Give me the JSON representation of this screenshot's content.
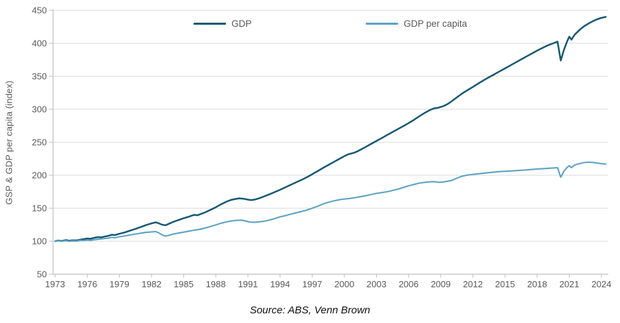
{
  "chart_data": {
    "type": "line",
    "title": "",
    "xlabel": "",
    "ylabel": "GSP & GDP per capita (index)",
    "source_note": "Source: ABS, Venn Brown",
    "x_range": [
      1973,
      2024.5
    ],
    "ylim": [
      50,
      450
    ],
    "x_ticks": [
      1973,
      1976,
      1979,
      1982,
      1985,
      1988,
      1991,
      1994,
      1997,
      2000,
      2003,
      2006,
      2009,
      2012,
      2015,
      2018,
      2021,
      2024
    ],
    "y_ticks": [
      50,
      100,
      150,
      200,
      250,
      300,
      350,
      400,
      450
    ],
    "grid": "horizontal",
    "legend_position": "top-center",
    "colors": {
      "gridline": "#d9d9d9",
      "axis": "#bfbfbf",
      "tick_text": "#595959",
      "gdp": "#175873",
      "gdp_per_capita": "#5da3c4"
    },
    "series": [
      {
        "name": "GDP",
        "color": "#175873",
        "points": [
          [
            1973,
            100
          ],
          [
            1973.3,
            101
          ],
          [
            1973.6,
            100.3
          ],
          [
            1974,
            101.8
          ],
          [
            1974.3,
            100.8
          ],
          [
            1974.6,
            101.4
          ],
          [
            1975,
            101.2
          ],
          [
            1975.4,
            102.5
          ],
          [
            1975.7,
            103.2
          ],
          [
            1976,
            104.2
          ],
          [
            1976.3,
            103.6
          ],
          [
            1976.6,
            105
          ],
          [
            1977,
            106.2
          ],
          [
            1977.3,
            105.8
          ],
          [
            1977.6,
            107
          ],
          [
            1978,
            108.3
          ],
          [
            1978.3,
            109.8
          ],
          [
            1978.6,
            109.4
          ],
          [
            1979,
            111.3
          ],
          [
            1979.5,
            113.3
          ],
          [
            1980,
            116
          ],
          [
            1980.5,
            118.6
          ],
          [
            1981,
            121.6
          ],
          [
            1981.5,
            124.6
          ],
          [
            1982,
            127
          ],
          [
            1982.4,
            128.6
          ],
          [
            1982.7,
            127
          ],
          [
            1983,
            125
          ],
          [
            1983.3,
            124.2
          ],
          [
            1983.6,
            126.2
          ],
          [
            1984,
            129.2
          ],
          [
            1984.5,
            132
          ],
          [
            1985,
            134.8
          ],
          [
            1985.5,
            137.3
          ],
          [
            1986,
            140
          ],
          [
            1986.3,
            139.4
          ],
          [
            1986.6,
            141.3
          ],
          [
            1987,
            143.8
          ],
          [
            1987.5,
            147.5
          ],
          [
            1988,
            151.5
          ],
          [
            1988.5,
            156
          ],
          [
            1989,
            160
          ],
          [
            1989.4,
            162.5
          ],
          [
            1989.8,
            164
          ],
          [
            1990.2,
            165
          ],
          [
            1990.6,
            164.4
          ],
          [
            1991,
            163
          ],
          [
            1991.3,
            162.4
          ],
          [
            1991.6,
            163
          ],
          [
            1992,
            164.8
          ],
          [
            1992.5,
            167.8
          ],
          [
            1993,
            171
          ],
          [
            1993.5,
            174.5
          ],
          [
            1994,
            178
          ],
          [
            1994.5,
            181.8
          ],
          [
            1995,
            185.5
          ],
          [
            1995.5,
            189.3
          ],
          [
            1996,
            193
          ],
          [
            1996.5,
            197
          ],
          [
            1997,
            201.5
          ],
          [
            1997.5,
            206.3
          ],
          [
            1998,
            211
          ],
          [
            1998.5,
            215.5
          ],
          [
            1999,
            220
          ],
          [
            1999.5,
            224.5
          ],
          [
            2000,
            229
          ],
          [
            2000.4,
            232
          ],
          [
            2000.8,
            233.5
          ],
          [
            2001.2,
            236
          ],
          [
            2001.6,
            239.5
          ],
          [
            2002,
            243
          ],
          [
            2002.5,
            247.5
          ],
          [
            2003,
            252
          ],
          [
            2003.5,
            256.5
          ],
          [
            2004,
            261
          ],
          [
            2004.5,
            265.5
          ],
          [
            2005,
            270
          ],
          [
            2005.5,
            274.5
          ],
          [
            2006,
            279
          ],
          [
            2006.5,
            284
          ],
          [
            2007,
            289.5
          ],
          [
            2007.5,
            294.5
          ],
          [
            2008,
            299
          ],
          [
            2008.4,
            301.5
          ],
          [
            2008.8,
            302.5
          ],
          [
            2009.2,
            304.5
          ],
          [
            2009.6,
            307.5
          ],
          [
            2010,
            312
          ],
          [
            2010.5,
            318
          ],
          [
            2011,
            324
          ],
          [
            2011.5,
            329
          ],
          [
            2012,
            334
          ],
          [
            2012.5,
            339
          ],
          [
            2013,
            344
          ],
          [
            2013.5,
            348.5
          ],
          [
            2014,
            353
          ],
          [
            2014.5,
            357.5
          ],
          [
            2015,
            362
          ],
          [
            2015.5,
            366.5
          ],
          [
            2016,
            371
          ],
          [
            2016.5,
            375.5
          ],
          [
            2017,
            380
          ],
          [
            2017.5,
            384.5
          ],
          [
            2018,
            389
          ],
          [
            2018.5,
            393
          ],
          [
            2019,
            397
          ],
          [
            2019.5,
            400
          ],
          [
            2019.9,
            402.5
          ],
          [
            2020.2,
            374
          ],
          [
            2020.5,
            390
          ],
          [
            2020.8,
            403
          ],
          [
            2021,
            410
          ],
          [
            2021.2,
            405.5
          ],
          [
            2021.5,
            413
          ],
          [
            2022,
            421
          ],
          [
            2022.4,
            426
          ],
          [
            2022.8,
            430
          ],
          [
            2023.2,
            433.5
          ],
          [
            2023.6,
            436.5
          ],
          [
            2024,
            438.5
          ],
          [
            2024.4,
            440
          ]
        ]
      },
      {
        "name": "GDP per capita",
        "color": "#5da3c4",
        "points": [
          [
            1973,
            100
          ],
          [
            1973.3,
            100.6
          ],
          [
            1973.6,
            99.8
          ],
          [
            1974,
            100.8
          ],
          [
            1974.3,
            99.9
          ],
          [
            1974.6,
            100.4
          ],
          [
            1975,
            100.2
          ],
          [
            1975.4,
            101.2
          ],
          [
            1975.7,
            101
          ],
          [
            1976,
            101.8
          ],
          [
            1976.3,
            101.2
          ],
          [
            1976.6,
            102.2
          ],
          [
            1977,
            103
          ],
          [
            1977.4,
            103.6
          ],
          [
            1978,
            104.8
          ],
          [
            1978.3,
            105.8
          ],
          [
            1978.6,
            105.3
          ],
          [
            1979,
            106.8
          ],
          [
            1979.5,
            108
          ],
          [
            1980,
            109.5
          ],
          [
            1980.5,
            110.8
          ],
          [
            1981,
            112.2
          ],
          [
            1981.5,
            113.4
          ],
          [
            1982,
            114.2
          ],
          [
            1982.4,
            114.6
          ],
          [
            1982.7,
            112.5
          ],
          [
            1983,
            109.5
          ],
          [
            1983.3,
            107.8
          ],
          [
            1983.6,
            108.8
          ],
          [
            1984,
            110.8
          ],
          [
            1984.5,
            112.3
          ],
          [
            1985,
            113.8
          ],
          [
            1985.5,
            115.3
          ],
          [
            1986,
            116.8
          ],
          [
            1986.5,
            118
          ],
          [
            1987,
            120
          ],
          [
            1987.5,
            122.3
          ],
          [
            1988,
            124.8
          ],
          [
            1988.5,
            127.3
          ],
          [
            1989,
            129.3
          ],
          [
            1989.4,
            130.5
          ],
          [
            1990,
            131.8
          ],
          [
            1990.4,
            132
          ],
          [
            1990.8,
            130.5
          ],
          [
            1991.2,
            129
          ],
          [
            1991.6,
            128.8
          ],
          [
            1992,
            129.3
          ],
          [
            1992.5,
            130.3
          ],
          [
            1993,
            132
          ],
          [
            1993.5,
            134.3
          ],
          [
            1994,
            137
          ],
          [
            1994.5,
            138.8
          ],
          [
            1995,
            141
          ],
          [
            1995.5,
            143
          ],
          [
            1996,
            145
          ],
          [
            1996.5,
            147.3
          ],
          [
            1997,
            150
          ],
          [
            1997.5,
            153
          ],
          [
            1998,
            156.5
          ],
          [
            1998.5,
            159
          ],
          [
            1999,
            161
          ],
          [
            1999.5,
            162.8
          ],
          [
            2000,
            164
          ],
          [
            2000.5,
            164.8
          ],
          [
            2001,
            166
          ],
          [
            2001.5,
            167.5
          ],
          [
            2002,
            169
          ],
          [
            2002.5,
            170.8
          ],
          [
            2003,
            172.5
          ],
          [
            2003.5,
            173.8
          ],
          [
            2004,
            175
          ],
          [
            2004.5,
            177
          ],
          [
            2005,
            179
          ],
          [
            2005.5,
            181.5
          ],
          [
            2006,
            184
          ],
          [
            2006.5,
            186
          ],
          [
            2007,
            188
          ],
          [
            2007.5,
            189.3
          ],
          [
            2008,
            190
          ],
          [
            2008.4,
            190.3
          ],
          [
            2008.8,
            189.3
          ],
          [
            2009.2,
            189.8
          ],
          [
            2009.6,
            190.8
          ],
          [
            2010,
            192
          ],
          [
            2010.5,
            195.5
          ],
          [
            2011,
            198.5
          ],
          [
            2011.5,
            200.3
          ],
          [
            2012,
            201.3
          ],
          [
            2012.5,
            202.3
          ],
          [
            2013,
            203
          ],
          [
            2013.5,
            204
          ],
          [
            2014,
            204.8
          ],
          [
            2014.5,
            205.5
          ],
          [
            2015,
            206
          ],
          [
            2015.5,
            206.5
          ],
          [
            2016,
            207
          ],
          [
            2016.5,
            207.5
          ],
          [
            2017,
            208
          ],
          [
            2017.5,
            208.8
          ],
          [
            2018,
            209.5
          ],
          [
            2018.5,
            210
          ],
          [
            2019,
            210.5
          ],
          [
            2019.5,
            211
          ],
          [
            2019.9,
            211.5
          ],
          [
            2020.2,
            197
          ],
          [
            2020.5,
            206
          ],
          [
            2020.8,
            212
          ],
          [
            2021,
            214.5
          ],
          [
            2021.2,
            211.5
          ],
          [
            2021.5,
            215.5
          ],
          [
            2022,
            217.8
          ],
          [
            2022.4,
            219.3
          ],
          [
            2022.8,
            219.8
          ],
          [
            2023.2,
            219.5
          ],
          [
            2023.6,
            218.5
          ],
          [
            2024,
            217.5
          ],
          [
            2024.4,
            217
          ]
        ]
      }
    ]
  }
}
